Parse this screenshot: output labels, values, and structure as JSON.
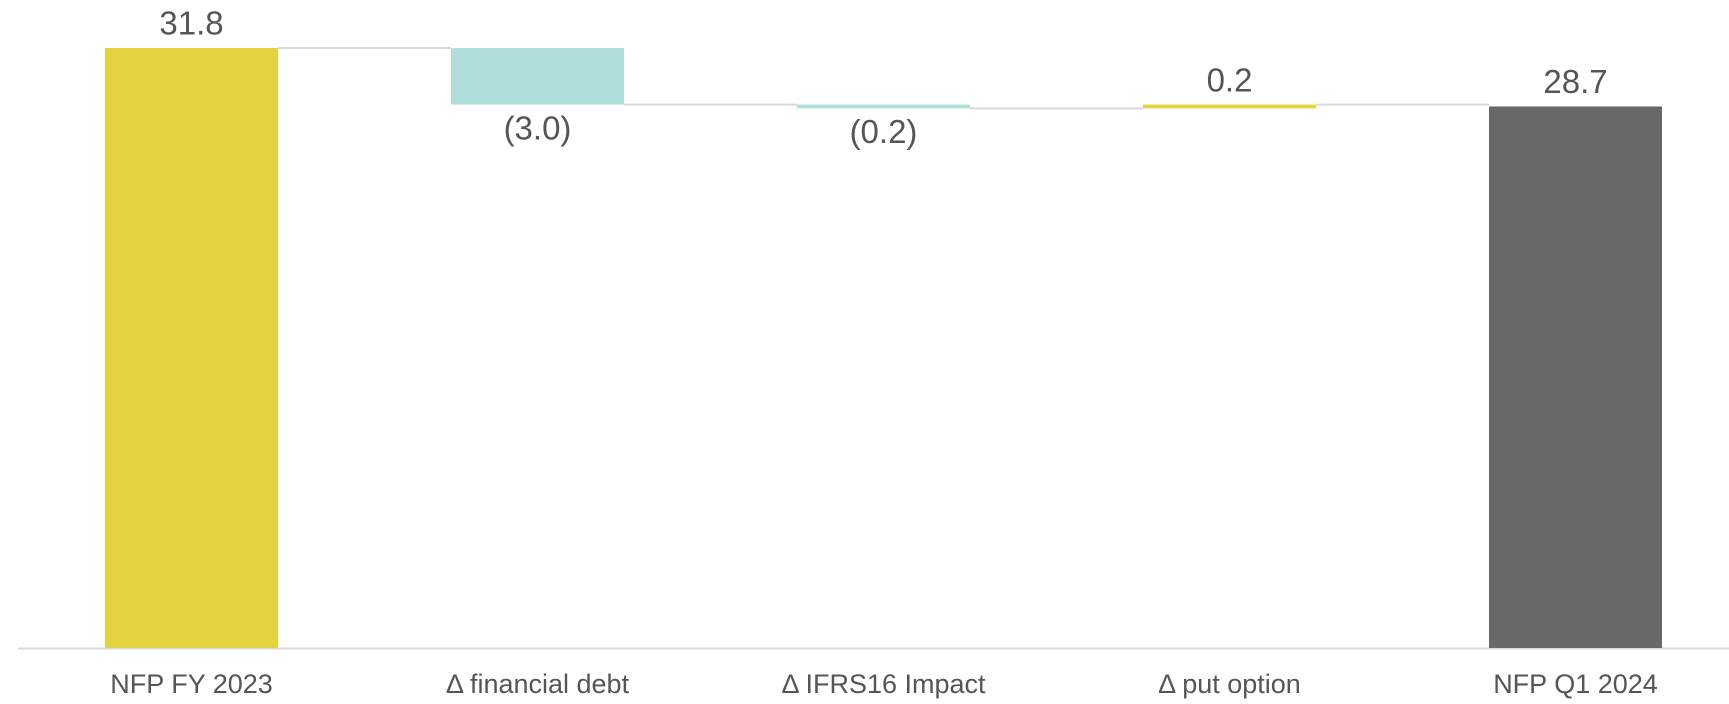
{
  "chart_data": {
    "type": "waterfall",
    "categories": [
      "NFP FY 2023",
      "Δ financial debt",
      "Δ IFRS16 Impact",
      "Δ put option",
      "NFP Q1 2024"
    ],
    "values": [
      31.8,
      -3.0,
      -0.2,
      0.2,
      28.7
    ],
    "value_labels": [
      "31.8",
      "(3.0)",
      "(0.2)",
      "0.2",
      "28.7"
    ],
    "colors": [
      "#e3d43f",
      "#afdedd",
      "#afdedd",
      "#e3d43f",
      "#686868"
    ]
  }
}
